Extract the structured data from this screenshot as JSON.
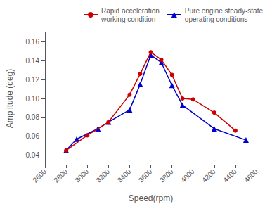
{
  "chart_data": {
    "type": "line",
    "xlabel": "Speed(rpm)",
    "ylabel": "Amplitude (deg)",
    "xlim": [
      2600,
      4600
    ],
    "ylim": [
      0.03,
      0.17
    ],
    "xticks": [
      2600,
      2800,
      3000,
      3200,
      3400,
      3600,
      3800,
      4000,
      4200,
      4400,
      4600
    ],
    "yticks": [
      0.04,
      0.06,
      0.08,
      {
        "value": 0.1,
        "label": "0.10"
      },
      0.12,
      0.14,
      0.16
    ],
    "grid": false,
    "legend": "upper right",
    "series": [
      {
        "name": "Rapid acceleration\nworking condition",
        "color": "#cc0000",
        "marker": "circle",
        "line_style": "solid",
        "x": [
          2800,
          3000,
          3200,
          3400,
          3500,
          3600,
          3700,
          3800,
          3900,
          4000,
          4200,
          4400
        ],
        "values": [
          0.045,
          0.061,
          0.075,
          0.104,
          0.126,
          0.149,
          0.141,
          0.125,
          0.1,
          0.099,
          0.085,
          0.066
        ]
      },
      {
        "name": "Pure engine steady-state\noperating conditions",
        "color": "#0000cc",
        "marker": "triangle",
        "line_style": "solid",
        "x": [
          2800,
          2900,
          3100,
          3200,
          3400,
          3500,
          3600,
          3700,
          3800,
          3900,
          4200,
          4500
        ],
        "values": [
          0.045,
          0.057,
          0.068,
          0.075,
          0.088,
          0.115,
          0.146,
          0.138,
          0.114,
          0.093,
          0.068,
          0.056
        ]
      }
    ]
  }
}
